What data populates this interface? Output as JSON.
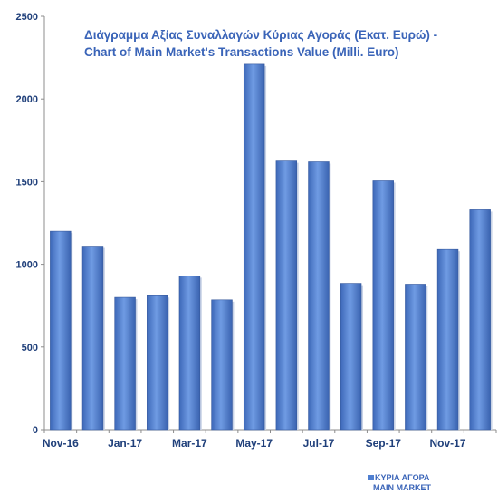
{
  "chart_data": {
    "type": "bar",
    "title_lines": [
      "Διάγραμμα Αξίας Συναλλαγών Κύριας Αγοράς (Εκατ.  Ευρώ) -",
      "Chart of Main Market's Transactions Value (Milli. Euro)"
    ],
    "categories": [
      "Nov-16",
      "Dec-16",
      "Jan-17",
      "Feb-17",
      "Mar-17",
      "Apr-17",
      "May-17",
      "Jun-17",
      "Jul-17",
      "Aug-17",
      "Sep-17",
      "Oct-17",
      "Nov-17",
      "Dec-17"
    ],
    "x_tick_labels": [
      "Nov-16",
      "",
      "Jan-17",
      "",
      "Mar-17",
      "",
      "May-17",
      "",
      "Jul-17",
      "",
      "Sep-17",
      "",
      "Nov-17",
      ""
    ],
    "series": [
      {
        "name": "ΚΥΡΙΑ ΑΓΟΡΑ MAIN MARKET",
        "values": [
          1200,
          1110,
          800,
          810,
          930,
          785,
          2210,
          1625,
          1620,
          885,
          1505,
          880,
          1090,
          1330
        ],
        "color": "#4f7fd1"
      }
    ],
    "ylim": [
      0,
      2500
    ],
    "y_ticks": [
      0,
      500,
      1000,
      1500,
      2000,
      2500
    ],
    "grid": false,
    "legend": {
      "position": "bottom-right",
      "lines": [
        "ΚΥΡΙΑ ΑΓΟΡΑ",
        "MAIN MARKET"
      ]
    }
  }
}
